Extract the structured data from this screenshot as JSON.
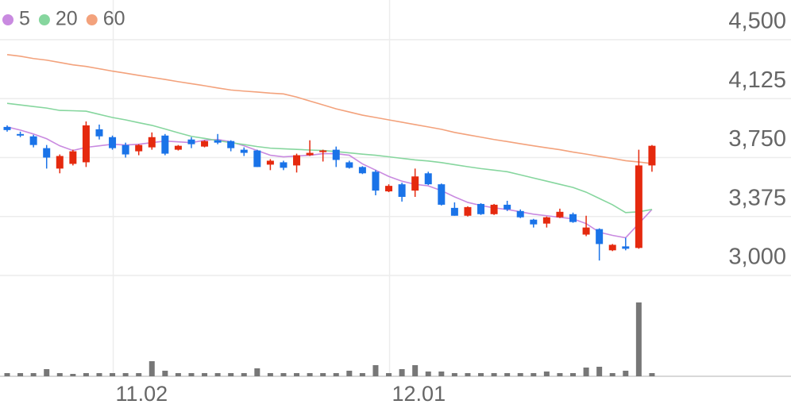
{
  "chart_data": {
    "type": "candlestick",
    "categories": [
      null,
      null,
      null,
      null,
      null,
      null,
      null,
      null,
      "11.02",
      null,
      null,
      null,
      null,
      null,
      null,
      null,
      null,
      null,
      null,
      null,
      null,
      null,
      null,
      null,
      null,
      null,
      null,
      null,
      null,
      "12.01",
      null,
      null,
      null,
      null,
      null,
      null,
      null,
      null,
      null,
      null,
      null,
      null,
      null,
      null,
      null,
      null,
      null,
      null,
      null,
      null
    ],
    "open": [
      3945,
      3900,
      3885,
      3810,
      3680,
      3710,
      3720,
      3930,
      3880,
      3830,
      3790,
      3815,
      3890,
      3800,
      3865,
      3820,
      3860,
      3855,
      3800,
      3795,
      3705,
      3720,
      3700,
      3765,
      3790,
      3800,
      3720,
      3690,
      3660,
      3535,
      3580,
      3540,
      3650,
      3580,
      3430,
      3380,
      3455,
      3390,
      3450,
      3410,
      3355,
      3330,
      3370,
      3390,
      3260,
      3295,
      3160,
      3185,
      3175,
      3700
    ],
    "high": [
      3955,
      3915,
      3895,
      3830,
      3770,
      3800,
      3980,
      3960,
      3890,
      3845,
      3835,
      3910,
      3900,
      3830,
      3880,
      3860,
      3900,
      3860,
      3815,
      3800,
      3740,
      3730,
      3775,
      3860,
      3800,
      3820,
      3730,
      3695,
      3670,
      3580,
      3590,
      3680,
      3660,
      3585,
      3465,
      3440,
      3460,
      3455,
      3475,
      3420,
      3360,
      3375,
      3425,
      3400,
      3380,
      3300,
      3200,
      3240,
      3800,
      3830
    ],
    "low": [
      3915,
      3880,
      3815,
      3680,
      3650,
      3700,
      3690,
      3865,
      3800,
      3750,
      3765,
      3800,
      3765,
      3795,
      3810,
      3815,
      3835,
      3790,
      3760,
      3690,
      3670,
      3670,
      3655,
      3760,
      3725,
      3690,
      3680,
      3645,
      3510,
      3530,
      3470,
      3500,
      3575,
      3445,
      3380,
      3375,
      3385,
      3385,
      3410,
      3365,
      3305,
      3305,
      3365,
      3335,
      3250,
      3095,
      3155,
      3160,
      3170,
      3660
    ],
    "close": [
      3925,
      3890,
      3830,
      3750,
      3760,
      3790,
      3955,
      3885,
      3810,
      3770,
      3830,
      3880,
      3775,
      3825,
      3835,
      3855,
      3845,
      3810,
      3780,
      3690,
      3730,
      3685,
      3765,
      3780,
      3795,
      3735,
      3685,
      3650,
      3540,
      3570,
      3500,
      3630,
      3580,
      3450,
      3380,
      3435,
      3390,
      3450,
      3420,
      3370,
      3325,
      3370,
      3405,
      3340,
      3305,
      3200,
      3195,
      3170,
      3700,
      3825
    ],
    "up_color": "#e5290e",
    "down_color": "#1a73e8",
    "series": [
      {
        "name": "5",
        "color": "#c98ae0",
        "values": [
          3945,
          3925,
          3900,
          3870,
          3825,
          3795,
          3815,
          3825,
          3835,
          3830,
          3835,
          3845,
          3855,
          3850,
          3845,
          3860,
          3865,
          3850,
          3825,
          3795,
          3765,
          3755,
          3760,
          3765,
          3775,
          3775,
          3765,
          3710,
          3670,
          3630,
          3600,
          3580,
          3570,
          3540,
          3500,
          3465,
          3445,
          3430,
          3420,
          3405,
          3390,
          3380,
          3370,
          3360,
          3330,
          3275,
          3255,
          3240,
          3330,
          3420
        ]
      },
      {
        "name": "20",
        "color": "#86d69e",
        "values": [
          4095,
          4085,
          4075,
          4065,
          4050,
          4048,
          4045,
          4025,
          4005,
          3990,
          3972,
          3955,
          3932,
          3908,
          3885,
          3872,
          3858,
          3845,
          3833,
          3820,
          3810,
          3806,
          3802,
          3798,
          3795,
          3788,
          3780,
          3772,
          3765,
          3755,
          3745,
          3735,
          3728,
          3718,
          3705,
          3692,
          3680,
          3670,
          3660,
          3640,
          3620,
          3600,
          3580,
          3560,
          3530,
          3490,
          3450,
          3400,
          3405,
          3420
        ]
      },
      {
        "name": "60",
        "color": "#f3a27c",
        "values": [
          4405,
          4395,
          4380,
          4370,
          4355,
          4340,
          4330,
          4315,
          4300,
          4287,
          4273,
          4260,
          4247,
          4233,
          4220,
          4207,
          4193,
          4180,
          4173,
          4167,
          4160,
          4155,
          4135,
          4110,
          4085,
          4060,
          4040,
          4020,
          4005,
          3990,
          3975,
          3960,
          3945,
          3930,
          3910,
          3895,
          3880,
          3865,
          3852,
          3838,
          3825,
          3812,
          3800,
          3785,
          3772,
          3758,
          3745,
          3730,
          3722,
          3712
        ]
      }
    ],
    "volume": {
      "color": "#777777",
      "ylim": [
        0,
        100
      ],
      "values": [
        4,
        4,
        4,
        9,
        4,
        3,
        4,
        4,
        4,
        4,
        4,
        19,
        7,
        4,
        4,
        4,
        4,
        4,
        4,
        10,
        4,
        4,
        4,
        4,
        4,
        4,
        7,
        4,
        14,
        4,
        9,
        14,
        6,
        6,
        4,
        4,
        4,
        4,
        4,
        4,
        4,
        6,
        4,
        4,
        11,
        12,
        4,
        7,
        93,
        4
      ]
    },
    "ylim": [
      3000,
      4500
    ],
    "yticks": [
      {
        "value": 3000,
        "label": "3,000"
      },
      {
        "value": 3375,
        "label": "3,375"
      },
      {
        "value": 3750,
        "label": "3,750"
      },
      {
        "value": 4125,
        "label": "4,125"
      },
      {
        "value": 4500,
        "label": "4,500"
      }
    ],
    "grid": true
  }
}
